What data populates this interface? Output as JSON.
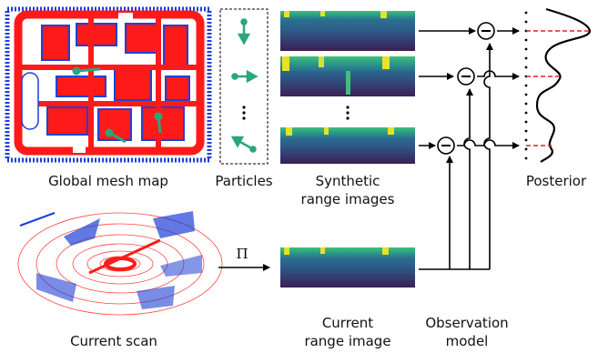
{
  "labels": {
    "global_map": "Global mesh map",
    "particles": "Particles",
    "synthetic_line1": "Synthetic",
    "synthetic_line2": "range images",
    "posterior": "Posterior",
    "current_scan": "Current scan",
    "current_range_line1": "Current",
    "current_range_line2": "range image",
    "observation_line1": "Observation",
    "observation_line2": "model",
    "projection_symbol": "Π",
    "minus_symbol": "−",
    "ellipsis": "⋮"
  },
  "colors": {
    "mesh_red": "#ff1a1a",
    "mesh_blue": "#1f3fd6",
    "particle_green": "#27a77a",
    "range_dark": "#3b1f56",
    "range_mid": "#2a7f8e",
    "range_light": "#3fbf7a",
    "range_bright": "#e6e12a",
    "highlight_dash": "#dd2222"
  },
  "posterior_peaks": [
    {
      "rank": 1,
      "level": "highest"
    },
    {
      "rank": 2,
      "level": "medium"
    },
    {
      "rank": 3,
      "level": "low"
    }
  ]
}
